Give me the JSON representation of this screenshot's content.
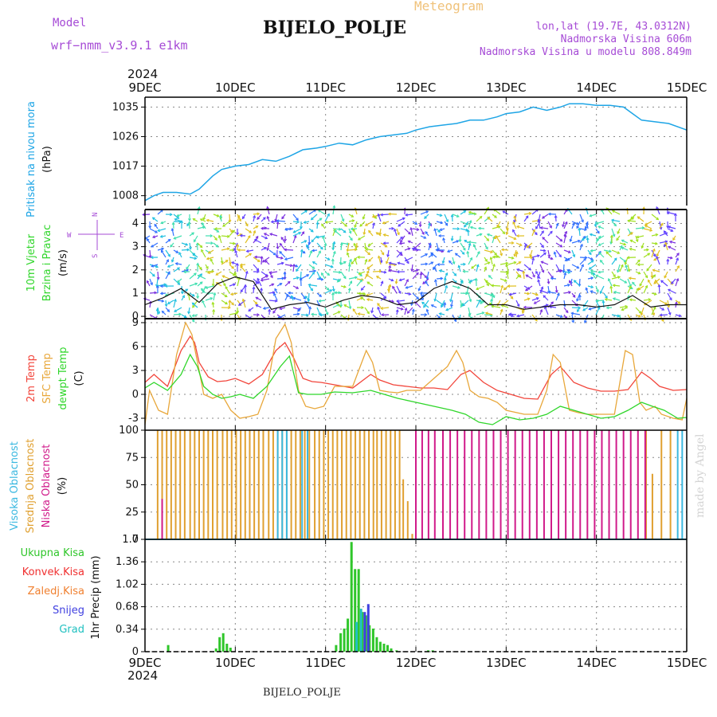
{
  "header": {
    "model_label": "Model",
    "model_run": "wrf−nmm_v3.9.1  e1km",
    "station": "BIJELO_POLJE",
    "meteogram": "Meteogram",
    "lonlat": "lon,lat (19.7E, 43.0312N)",
    "elevation": "Nadmorska Visina 606m",
    "model_elevation": "Nadmorska Visina u modelu 808.849m",
    "made_by": "made by Angel",
    "footer_station": "BIJELO_POLJE"
  },
  "time_axis": {
    "year": "2024",
    "labels": [
      "9DEC",
      "10DEC",
      "11DEC",
      "12DEC",
      "13DEC",
      "14DEC",
      "15DEC"
    ]
  },
  "colors": {
    "pressure": "#1ea5e6",
    "temp2m": "#f2453b",
    "sfc_temp": "#e8a73a",
    "dewpoint": "#2fd62a",
    "high_cloud": "#3ab8e0",
    "mid_cloud": "#e0a030",
    "low_cloud": "#d01a8a",
    "precip_total": "#2fc62a",
    "precip_conv": "#f03030",
    "precip_frozen": "#f08030",
    "snow": "#4040e0",
    "graupel": "#20c0c0",
    "wind_legend": "#a64bd6"
  },
  "chart_data": [
    {
      "id": "pressure",
      "type": "line",
      "title": "",
      "ylabel_lines": [
        "Pritisak na nivou mora",
        "(hPa)"
      ],
      "ylim": [
        1005,
        1038
      ],
      "yticks": [
        "1008",
        "1017",
        "1026",
        "1035"
      ],
      "series": [
        {
          "x": [
            0,
            0.1,
            0.2,
            0.35,
            0.5,
            0.6,
            0.75,
            0.85,
            1.0,
            1.15,
            1.3,
            1.45,
            1.6,
            1.75,
            1.9,
            2.0,
            2.15,
            2.3,
            2.45,
            2.6,
            2.75,
            2.9,
            3.0,
            3.15,
            3.3,
            3.45,
            3.6,
            3.75,
            3.9,
            4.0,
            4.15,
            4.3,
            4.45,
            4.6,
            4.7,
            4.85,
            5.0,
            5.15,
            5.3,
            5.4,
            5.5,
            5.65,
            5.8,
            6.0
          ],
          "values": [
            1006.5,
            1008,
            1009,
            1009,
            1008.5,
            1010,
            1014,
            1016,
            1017,
            1017.5,
            1019,
            1018.5,
            1020,
            1022,
            1022.5,
            1023,
            1024,
            1023.5,
            1025,
            1026,
            1026.5,
            1027,
            1028,
            1029,
            1029.5,
            1030,
            1031,
            1031,
            1032,
            1033,
            1033.5,
            1035,
            1034,
            1035,
            1036,
            1036,
            1035.5,
            1035.5,
            1035,
            1033,
            1031,
            1030.5,
            1030,
            1028
          ]
        }
      ]
    },
    {
      "id": "wind",
      "type": "line",
      "title": "",
      "ylabel_lines": [
        "10m Vjetar",
        "Brzina i Pravac",
        "(m/s)"
      ],
      "direction_legend": [
        "N",
        "W",
        "E",
        "S"
      ],
      "ylim": [
        -0.1,
        4.6
      ],
      "yticks": [
        "0",
        "1",
        "2",
        "3",
        "4"
      ],
      "series": [
        {
          "name": "",
          "x": [
            0,
            0.2,
            0.4,
            0.6,
            0.8,
            1.0,
            1.2,
            1.4,
            1.6,
            1.8,
            2.0,
            2.2,
            2.4,
            2.6,
            2.8,
            3.0,
            3.2,
            3.4,
            3.6,
            3.8,
            4.0,
            4.2,
            4.4,
            4.6,
            4.8,
            5.0,
            5.2,
            5.4,
            5.6,
            5.8,
            6.0
          ],
          "values": [
            0.5,
            0.8,
            1.2,
            0.6,
            1.4,
            1.7,
            1.5,
            0.3,
            0.5,
            0.6,
            0.4,
            0.7,
            0.9,
            0.8,
            0.5,
            0.6,
            1.2,
            1.5,
            1.2,
            0.5,
            0.5,
            0.3,
            0.4,
            0.5,
            0.5,
            0.4,
            0.5,
            0.9,
            0.4,
            0.5,
            0.5
          ]
        }
      ]
    },
    {
      "id": "temperature",
      "type": "line",
      "title": "",
      "ylabel_lines": [
        "2m Temp",
        "SFC Temp",
        "dewpt Temp",
        "(C)"
      ],
      "ylim": [
        -4.5,
        9.5
      ],
      "yticks": [
        "-3",
        "0",
        "3",
        "6",
        "9"
      ],
      "series": [
        {
          "name": "2m Temp",
          "x": [
            0,
            0.1,
            0.25,
            0.4,
            0.5,
            0.55,
            0.6,
            0.7,
            0.8,
            0.9,
            1.0,
            1.15,
            1.3,
            1.45,
            1.55,
            1.65,
            1.75,
            1.85,
            1.95,
            2.1,
            2.3,
            2.5,
            2.6,
            2.75,
            2.9,
            3.05,
            3.2,
            3.35,
            3.5,
            3.6,
            3.75,
            3.9,
            4.05,
            4.2,
            4.35,
            4.5,
            4.6,
            4.75,
            4.9,
            5.05,
            5.2,
            5.35,
            5.5,
            5.6,
            5.7,
            5.85,
            6.0
          ],
          "values": [
            1.5,
            2.5,
            1.0,
            5.5,
            7.3,
            6.5,
            4.0,
            2.2,
            1.6,
            1.7,
            2.0,
            1.3,
            2.5,
            5.5,
            6.5,
            4.5,
            2.0,
            1.6,
            1.5,
            1.2,
            0.8,
            2.5,
            1.8,
            1.2,
            1.0,
            0.8,
            0.8,
            0.6,
            2.5,
            3.0,
            1.5,
            0.5,
            0.0,
            -0.5,
            -0.6,
            2.5,
            3.5,
            1.5,
            0.8,
            0.4,
            0.4,
            0.6,
            2.8,
            2.0,
            1.0,
            0.5,
            0.6
          ]
        },
        {
          "name": "SFC Temp",
          "x": [
            0,
            0.05,
            0.15,
            0.25,
            0.35,
            0.45,
            0.52,
            0.6,
            0.65,
            0.75,
            0.85,
            0.95,
            1.05,
            1.15,
            1.25,
            1.35,
            1.45,
            1.55,
            1.62,
            1.7,
            1.78,
            1.88,
            1.98,
            2.1,
            2.3,
            2.45,
            2.52,
            2.6,
            2.7,
            2.8,
            2.9,
            3.05,
            3.2,
            3.35,
            3.45,
            3.52,
            3.6,
            3.7,
            3.8,
            3.9,
            4.0,
            4.2,
            4.35,
            4.45,
            4.52,
            4.6,
            4.7,
            4.8,
            4.9,
            5.05,
            5.2,
            5.32,
            5.4,
            5.48,
            5.55,
            5.65,
            5.72,
            5.85,
            5.95,
            6.0
          ],
          "values": [
            -3.8,
            0.5,
            -2.0,
            -2.5,
            5.0,
            9.0,
            7.5,
            3.0,
            0.0,
            -0.5,
            0.0,
            -2.0,
            -3.0,
            -2.8,
            -2.5,
            0.5,
            7.0,
            8.8,
            6.5,
            0.5,
            -1.5,
            -1.8,
            -1.5,
            1.0,
            1.0,
            5.5,
            4.0,
            0.5,
            0.3,
            0.2,
            0.5,
            0.5,
            2.0,
            3.5,
            5.5,
            4.0,
            0.5,
            -0.3,
            -0.5,
            -1.0,
            -2.0,
            -2.5,
            -2.5,
            0.5,
            5.0,
            4.0,
            -2.0,
            -2.3,
            -2.5,
            -2.5,
            -2.5,
            5.5,
            5.0,
            -1.0,
            -2.0,
            -1.5,
            -2.5,
            -3.0,
            -3.2,
            -0.5
          ]
        },
        {
          "name": "dewpt Temp",
          "x": [
            0,
            0.1,
            0.25,
            0.4,
            0.5,
            0.58,
            0.65,
            0.75,
            0.85,
            0.95,
            1.05,
            1.2,
            1.35,
            1.5,
            1.6,
            1.7,
            1.8,
            1.95,
            2.1,
            2.3,
            2.5,
            2.65,
            2.8,
            3.0,
            3.2,
            3.4,
            3.55,
            3.7,
            3.85,
            4.0,
            4.15,
            4.3,
            4.45,
            4.6,
            4.75,
            4.9,
            5.05,
            5.2,
            5.35,
            5.5,
            5.62,
            5.75,
            5.9,
            6.0
          ],
          "values": [
            0.8,
            1.5,
            0.5,
            2.5,
            5.0,
            3.5,
            1.0,
            0.0,
            -0.5,
            -0.3,
            0.0,
            -0.5,
            1.0,
            3.5,
            4.8,
            0.2,
            0.0,
            0.0,
            0.3,
            0.2,
            0.5,
            0.0,
            -0.5,
            -1.0,
            -1.5,
            -2.0,
            -2.5,
            -3.5,
            -3.8,
            -2.8,
            -3.2,
            -3.0,
            -2.5,
            -1.5,
            -2.0,
            -2.5,
            -3.0,
            -2.8,
            -2.0,
            -1.0,
            -1.5,
            -2.0,
            -3.0,
            -2.9
          ]
        }
      ]
    },
    {
      "id": "clouds",
      "type": "bar",
      "title": "",
      "ylabel_lines": [
        "Visoka Oblacnost",
        "Srednja Oblacnost",
        "Niska Oblacnost",
        "(%)"
      ],
      "ylim": [
        0,
        100
      ],
      "yticks": [
        "0",
        "25",
        "50",
        "75",
        "100"
      ],
      "series": [
        {
          "name": "Srednja Oblacnost",
          "x": [
            0.14,
            0.19,
            0.24,
            0.29,
            0.34,
            0.39,
            0.44,
            0.5,
            0.55,
            0.6,
            0.65,
            0.7,
            0.75,
            0.8,
            0.86,
            0.91,
            0.96,
            1.01,
            1.06,
            1.11,
            1.16,
            1.21,
            1.26,
            1.31,
            1.37,
            1.42,
            1.47,
            1.52,
            1.57,
            1.62,
            1.67,
            1.72,
            1.77,
            1.82,
            1.88,
            1.93,
            1.98,
            2.03,
            2.08,
            2.13,
            2.18,
            2.23,
            2.28,
            2.33,
            2.38,
            2.43,
            2.48,
            2.53,
            2.57,
            2.62,
            2.67,
            2.72,
            2.77,
            2.82,
            2.86,
            2.91,
            2.96,
            5.55,
            5.62,
            5.72,
            5.82
          ],
          "values": [
            100,
            100,
            100,
            100,
            100,
            100,
            100,
            100,
            100,
            100,
            100,
            100,
            100,
            100,
            100,
            100,
            100,
            100,
            100,
            100,
            100,
            100,
            100,
            100,
            100,
            100,
            100,
            100,
            100,
            100,
            100,
            100,
            100,
            100,
            100,
            100,
            100,
            100,
            100,
            100,
            100,
            100,
            100,
            100,
            100,
            100,
            100,
            100,
            100,
            100,
            100,
            100,
            100,
            100,
            55,
            35,
            5,
            100,
            60,
            100,
            100
          ]
        },
        {
          "name": "Niska Oblacnost",
          "x": [
            0.19,
            3.0,
            3.07,
            3.14,
            3.21,
            3.3,
            3.38,
            3.46,
            3.54,
            3.62,
            3.7,
            3.78,
            3.86,
            3.94,
            4.02,
            4.1,
            4.18,
            4.26,
            4.34,
            4.42,
            4.5,
            4.58,
            4.66,
            4.74,
            4.82,
            4.9,
            4.98,
            5.06,
            5.14,
            5.22,
            5.3,
            5.38,
            5.46,
            5.54
          ],
          "values": [
            37,
            100,
            100,
            100,
            100,
            100,
            100,
            100,
            100,
            100,
            100,
            100,
            100,
            100,
            100,
            100,
            100,
            100,
            100,
            100,
            100,
            100,
            100,
            100,
            100,
            100,
            100,
            100,
            100,
            100,
            100,
            100,
            100,
            100
          ]
        },
        {
          "name": "Visoka Oblacnost",
          "x": [
            1.47,
            1.52,
            1.57,
            1.74,
            1.8,
            5.9,
            5.95
          ],
          "values": [
            100,
            100,
            100,
            100,
            100,
            100,
            100
          ]
        }
      ]
    },
    {
      "id": "precipitation",
      "type": "bar",
      "title": "",
      "ylabel": "1hr Precip (mm)",
      "legend": [
        "Ukupna Kisa",
        "Konvek.Kisa",
        "Zaledj.Kisa",
        "Snijeg",
        "Grad"
      ],
      "ylim": [
        0,
        1.7
      ],
      "yticks": [
        "0",
        "0.34",
        "0.68",
        "1.02",
        "1.36",
        "1.7"
      ],
      "series": [
        {
          "name": "Ukupna Kisa",
          "x": [
            0.27,
            0.8,
            0.84,
            0.88,
            0.92,
            0.96,
            2.13,
            2.18,
            2.22,
            2.26,
            2.3,
            2.34,
            2.38,
            2.42,
            2.46,
            2.5,
            2.54,
            2.58,
            2.62,
            2.66,
            2.7,
            2.74,
            2.8,
            3.15,
            3.2
          ],
          "values": [
            0.1,
            0.05,
            0.22,
            0.28,
            0.12,
            0.06,
            0.1,
            0.28,
            0.35,
            0.5,
            1.66,
            1.25,
            1.25,
            0.6,
            0.55,
            0.4,
            0.35,
            0.22,
            0.15,
            0.12,
            0.1,
            0.05,
            0.02,
            0.02,
            0.02
          ]
        },
        {
          "name": "Snijeg",
          "x": [
            2.42,
            2.46
          ],
          "values": [
            0.6,
            0.72
          ]
        },
        {
          "name": "Grad",
          "x": [
            2.33,
            2.38
          ],
          "values": [
            0.45,
            0.65
          ]
        }
      ]
    }
  ]
}
